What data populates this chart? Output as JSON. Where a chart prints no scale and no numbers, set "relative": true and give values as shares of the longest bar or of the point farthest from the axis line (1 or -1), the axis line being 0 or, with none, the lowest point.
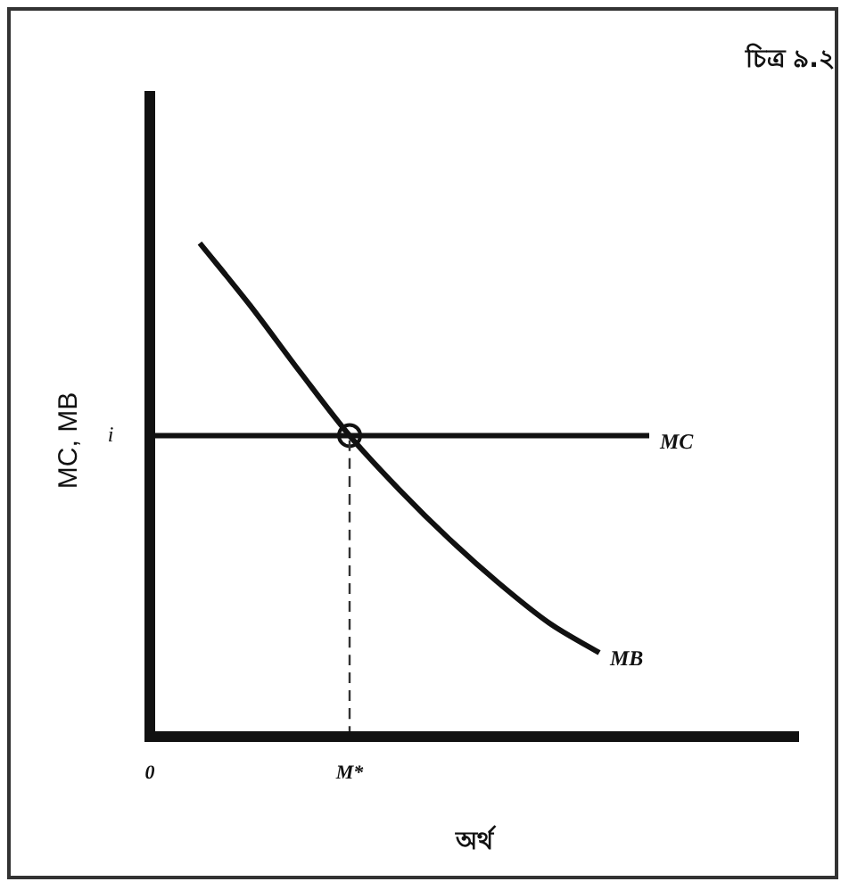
{
  "chart_data": {
    "type": "line",
    "relative": true,
    "title": "চিত্র ৯.২",
    "xlabel": "অর্থ",
    "ylabel": "MC, MB",
    "categories": [
      "0",
      null,
      null,
      null,
      "M*",
      null,
      null,
      null,
      null,
      null,
      null,
      null,
      null,
      null
    ],
    "series": [
      {
        "name": "MC",
        "color": "#111111",
        "values": [
          0.61,
          0.61,
          0.61,
          0.61,
          0.61,
          0.61,
          0.61,
          0.61,
          0.61,
          0.61,
          0.61,
          null,
          null,
          null
        ]
      },
      {
        "name": "MB",
        "color": "#111111",
        "values": [
          null,
          1.0,
          0.875,
          0.74,
          0.61,
          0.5,
          0.4,
          0.31,
          0.23,
          0.17,
          null,
          null,
          null,
          null
        ]
      },
      {
        "type": "line",
        "color": "#333333",
        "line_style": "dashed",
        "x": [
          "M*",
          "M*"
        ],
        "values": [
          0,
          0.61
        ]
      },
      {
        "type": "scatter",
        "color": "#111111",
        "marker": "circle",
        "x": [
          "M*"
        ],
        "values": [
          0.61
        ]
      }
    ],
    "annotations": [
      "i"
    ],
    "grid": false,
    "legend": false,
    "marker": "none",
    "line_style": "solid"
  }
}
